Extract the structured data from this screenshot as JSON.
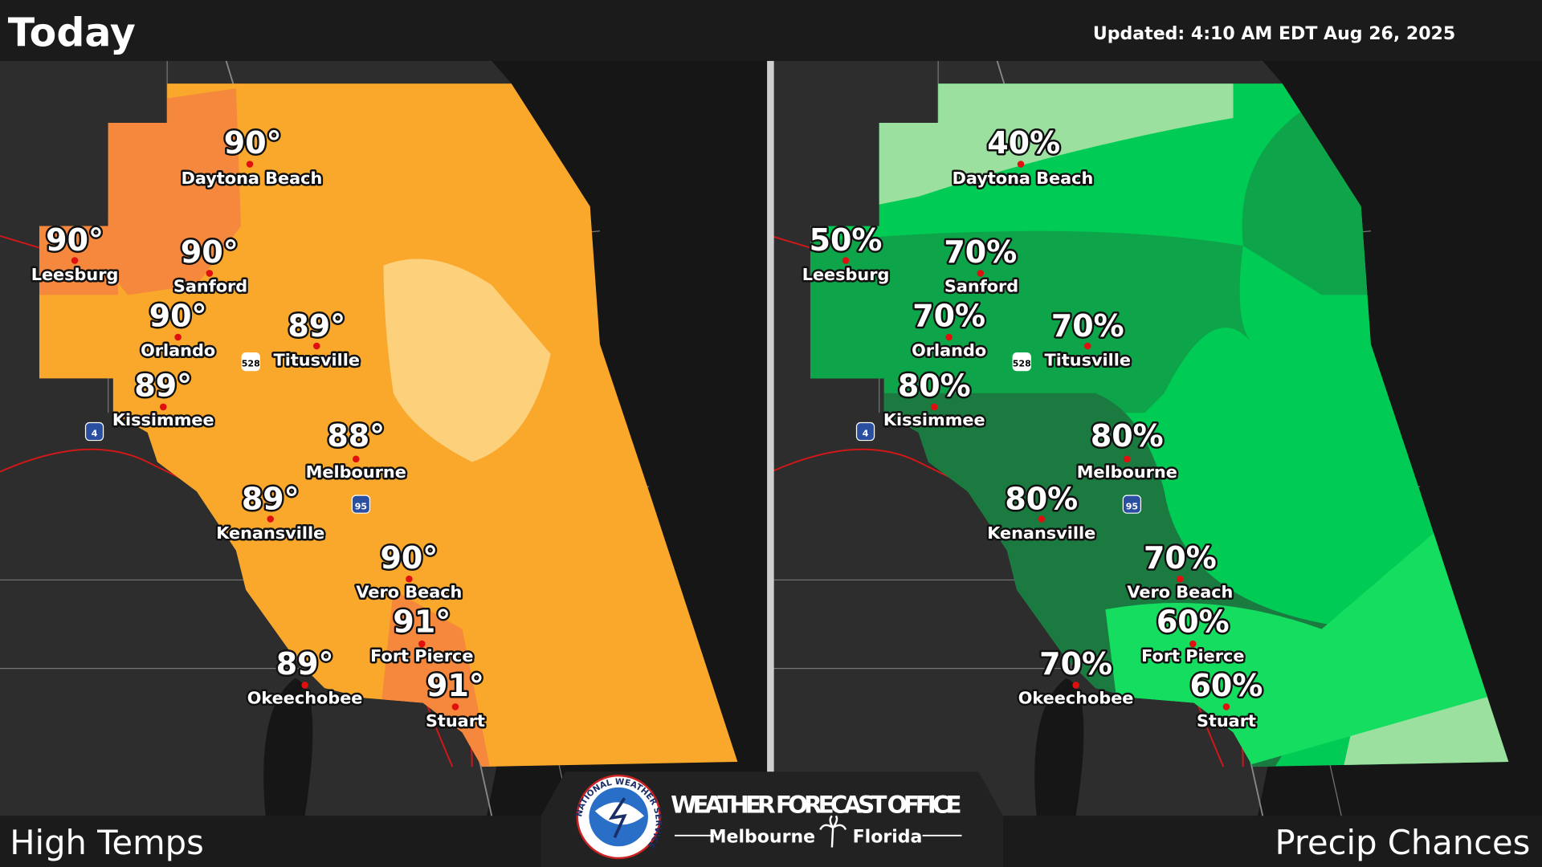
{
  "header": {
    "title": "Today",
    "updated": "Updated:  4:10 AM EDT Aug 26, 2025"
  },
  "panels": [
    {
      "caption": "High Temps",
      "cities": [
        {
          "name": "Daytona Beach",
          "value": "90°"
        },
        {
          "name": "Leesburg",
          "value": "90°"
        },
        {
          "name": "Sanford",
          "value": "90°"
        },
        {
          "name": "Orlando",
          "value": "90°"
        },
        {
          "name": "Titusville",
          "value": "89°"
        },
        {
          "name": "Kissimmee",
          "value": "89°"
        },
        {
          "name": "Melbourne",
          "value": "88°"
        },
        {
          "name": "Kenansville",
          "value": "89°"
        },
        {
          "name": "Vero Beach",
          "value": "90°"
        },
        {
          "name": "Fort Pierce",
          "value": "91°"
        },
        {
          "name": "Okeechobee",
          "value": "89°"
        },
        {
          "name": "Stuart",
          "value": "91°"
        }
      ]
    },
    {
      "caption": "Precip Chances",
      "cities": [
        {
          "name": "Daytona Beach",
          "value": "40%"
        },
        {
          "name": "Leesburg",
          "value": "50%"
        },
        {
          "name": "Sanford",
          "value": "70%"
        },
        {
          "name": "Orlando",
          "value": "70%"
        },
        {
          "name": "Titusville",
          "value": "70%"
        },
        {
          "name": "Kissimmee",
          "value": "80%"
        },
        {
          "name": "Melbourne",
          "value": "80%"
        },
        {
          "name": "Kenansville",
          "value": "80%"
        },
        {
          "name": "Vero Beach",
          "value": "70%"
        },
        {
          "name": "Fort Pierce",
          "value": "60%"
        },
        {
          "name": "Okeechobee",
          "value": "70%"
        },
        {
          "name": "Stuart",
          "value": "60%"
        }
      ]
    }
  ],
  "shields": [
    "528",
    "4",
    "95"
  ],
  "logo": {
    "ring": "NATIONAL WEATHER SERVICE",
    "office": "WEATHER FORECAST OFFICE",
    "city": "Melbourne",
    "state": "Florida"
  }
}
